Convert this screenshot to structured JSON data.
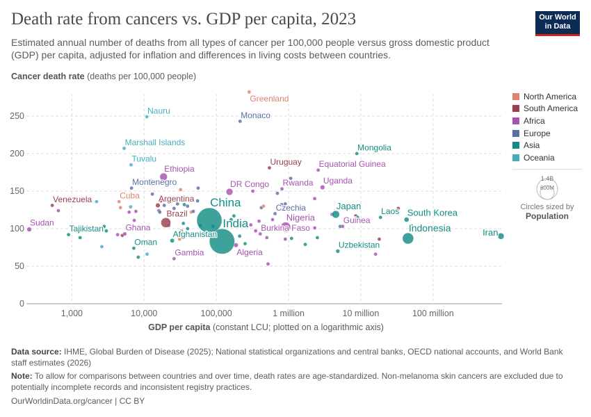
{
  "header": {
    "title": "Death rate from cancers vs. GDP per capita, 2023",
    "subtitle": "Estimated annual number of deaths from all types of cancer per 100,000 people versus gross domestic product (GDP) per capita, adjusted for inflation and differences in living costs between countries.",
    "logo_line1": "Our World",
    "logo_line2": "in Data"
  },
  "legend": {
    "regions": [
      {
        "key": "NA",
        "label": "North America",
        "color": "#e0826d"
      },
      {
        "key": "SA",
        "label": "South America",
        "color": "#9a3f4c"
      },
      {
        "key": "AF",
        "label": "Africa",
        "color": "#a653b0"
      },
      {
        "key": "EU",
        "label": "Europe",
        "color": "#5a6fa3"
      },
      {
        "key": "AS",
        "label": "Asia",
        "color": "#138c84"
      },
      {
        "key": "OC",
        "label": "Oceania",
        "color": "#45aebe"
      }
    ],
    "size_max_label": "1.4B",
    "size_mid_label": "600M",
    "size_caption": "Circles sized by",
    "size_variable": "Population"
  },
  "chart_data": {
    "type": "scatter",
    "title": "Death rate from cancers vs. GDP per capita, 2023",
    "ylabel_bold": "Cancer death rate",
    "ylabel_rest": " (deaths per 100,000 people)",
    "xlabel_bold": "GDP per capita",
    "xlabel_rest": " (constant LCU; plotted on a logarithmic axis)",
    "x_scale": "log",
    "xlim": [
      235,
      900000000
    ],
    "ylim": [
      0,
      290
    ],
    "x_ticks": [
      {
        "value": 1000,
        "label": "1,000"
      },
      {
        "value": 10000,
        "label": "10,000"
      },
      {
        "value": 100000,
        "label": "100,000"
      },
      {
        "value": 1000000,
        "label": "1 million"
      },
      {
        "value": 10000000,
        "label": "10 million"
      },
      {
        "value": 100000000,
        "label": "100 million"
      }
    ],
    "y_ticks": [
      0,
      50,
      100,
      150,
      200,
      250
    ],
    "grid": true,
    "legend_position": "right",
    "points": [
      {
        "name": "Greenland",
        "x": 285000,
        "y": 282,
        "region": "NA",
        "pop": 56000
      },
      {
        "name": "Nauru",
        "x": 10900,
        "y": 249,
        "region": "OC",
        "pop": 12000
      },
      {
        "name": "Monaco",
        "x": 213000,
        "y": 243,
        "region": "EU",
        "pop": 38000
      },
      {
        "name": "Marshall Islands",
        "x": 5300,
        "y": 207,
        "region": "OC",
        "pop": 40000
      },
      {
        "name": "Tuvalu",
        "x": 6600,
        "y": 185,
        "region": "OC",
        "pop": 11000
      },
      {
        "name": "Ethiopia",
        "x": 18600,
        "y": 169,
        "region": "AF",
        "pop": 127000000
      },
      {
        "name": "Montenegro",
        "x": 6700,
        "y": 154,
        "region": "EU",
        "pop": 620000
      },
      {
        "name": "Venezuela",
        "x": 535,
        "y": 131,
        "region": "SA",
        "pop": 28000000
      },
      {
        "name": "Cuba",
        "x": 4500,
        "y": 136,
        "region": "NA",
        "pop": 11000000
      },
      {
        "name": "Argentina",
        "x": 15500,
        "y": 131,
        "region": "SA",
        "pop": 46000000
      },
      {
        "name": "Brazil",
        "x": 20000,
        "y": 108,
        "region": "SA",
        "pop": 216000000
      },
      {
        "name": "China",
        "x": 80000,
        "y": 111,
        "region": "AS",
        "pop": 1410000000
      },
      {
        "name": "India",
        "x": 120000,
        "y": 83,
        "region": "AS",
        "pop": 1430000000
      },
      {
        "name": "Sudan",
        "x": 257,
        "y": 99,
        "region": "AF",
        "pop": 48000000
      },
      {
        "name": "Tajikistan",
        "x": 900,
        "y": 92,
        "region": "AS",
        "pop": 10000000
      },
      {
        "name": "Ghana",
        "x": 5400,
        "y": 93,
        "region": "AF",
        "pop": 34000000
      },
      {
        "name": "Oman",
        "x": 7200,
        "y": 74,
        "region": "AS",
        "pop": 4600000
      },
      {
        "name": "Afghanistan",
        "x": 24500,
        "y": 84,
        "region": "AS",
        "pop": 42000000
      },
      {
        "name": "Gambia",
        "x": 26000,
        "y": 60,
        "region": "AF",
        "pop": 2700000
      },
      {
        "name": "Algeria",
        "x": 187000,
        "y": 78,
        "region": "AF",
        "pop": 46000000
      },
      {
        "name": "Uruguay",
        "x": 543000,
        "y": 181,
        "region": "SA",
        "pop": 3400000
      },
      {
        "name": "DR Congo",
        "x": 152000,
        "y": 149,
        "region": "AF",
        "pop": 102000000
      },
      {
        "name": "Rwanda",
        "x": 810000,
        "y": 153,
        "region": "AF",
        "pop": 14000000
      },
      {
        "name": "Equatorial Guinea",
        "x": 2570000,
        "y": 178,
        "region": "AF",
        "pop": 1700000
      },
      {
        "name": "Uganda",
        "x": 2950000,
        "y": 155,
        "region": "AF",
        "pop": 48000000
      },
      {
        "name": "Czechia",
        "x": 650000,
        "y": 120,
        "region": "EU",
        "pop": 10500000
      },
      {
        "name": "Nigeria",
        "x": 910000,
        "y": 102,
        "region": "AF",
        "pop": 224000000
      },
      {
        "name": "Burkina Faso",
        "x": 405000,
        "y": 93,
        "region": "AF",
        "pop": 23000000
      },
      {
        "name": "Japan",
        "x": 4500000,
        "y": 119,
        "region": "AS",
        "pop": 124000000
      },
      {
        "name": "Guinea",
        "x": 5600000,
        "y": 103,
        "region": "AF",
        "pop": 14000000
      },
      {
        "name": "Mongolia",
        "x": 8800000,
        "y": 200,
        "region": "AS",
        "pop": 3400000
      },
      {
        "name": "Laos",
        "x": 18700000,
        "y": 115,
        "region": "AS",
        "pop": 7600000
      },
      {
        "name": "South Korea",
        "x": 43000000,
        "y": 112,
        "region": "AS",
        "pop": 51700000
      },
      {
        "name": "Indonesia",
        "x": 45000000,
        "y": 87,
        "region": "AS",
        "pop": 278000000
      },
      {
        "name": "Iran",
        "x": 870000000,
        "y": 90,
        "region": "AS",
        "pop": 89000000
      },
      {
        "name": "Uzbekistan",
        "x": 4800000,
        "y": 70,
        "region": "AS",
        "pop": 36000000
      },
      {
        "x": 2200,
        "y": 136,
        "region": "OC"
      },
      {
        "x": 650,
        "y": 124,
        "region": "AF"
      },
      {
        "x": 2800,
        "y": 103,
        "region": "AS"
      },
      {
        "x": 3000,
        "y": 97,
        "region": "AS"
      },
      {
        "x": 2600,
        "y": 76,
        "region": "OC"
      },
      {
        "x": 1300,
        "y": 88,
        "region": "AS"
      },
      {
        "x": 4300,
        "y": 92,
        "region": "AF"
      },
      {
        "x": 5000,
        "y": 91,
        "region": "SA"
      },
      {
        "x": 4700,
        "y": 128,
        "region": "NA"
      },
      {
        "x": 6200,
        "y": 122,
        "region": "AF"
      },
      {
        "x": 6500,
        "y": 129,
        "region": "OC"
      },
      {
        "x": 7700,
        "y": 123,
        "region": "AF"
      },
      {
        "x": 7300,
        "y": 111,
        "region": "AF"
      },
      {
        "x": 8300,
        "y": 62,
        "region": "AS"
      },
      {
        "x": 11000,
        "y": 66,
        "region": "OC"
      },
      {
        "x": 13000,
        "y": 146,
        "region": "EU"
      },
      {
        "x": 12500,
        "y": 164,
        "region": "OC"
      },
      {
        "x": 17000,
        "y": 137,
        "region": "SA"
      },
      {
        "x": 16000,
        "y": 124,
        "region": "AF"
      },
      {
        "x": 16500,
        "y": 122,
        "region": "EU"
      },
      {
        "x": 19000,
        "y": 131,
        "region": "EU"
      },
      {
        "x": 20500,
        "y": 138,
        "region": "AS"
      },
      {
        "x": 24000,
        "y": 137,
        "region": "NA"
      },
      {
        "x": 26000,
        "y": 127,
        "region": "EU"
      },
      {
        "x": 29000,
        "y": 133,
        "region": "EU"
      },
      {
        "x": 32000,
        "y": 152,
        "region": "NA"
      },
      {
        "x": 34000,
        "y": 140,
        "region": "EU"
      },
      {
        "x": 36000,
        "y": 132,
        "region": "AS"
      },
      {
        "x": 40000,
        "y": 130,
        "region": "EU"
      },
      {
        "x": 45000,
        "y": 122,
        "region": "NA"
      },
      {
        "x": 48000,
        "y": 123,
        "region": "EU"
      },
      {
        "x": 55000,
        "y": 137,
        "region": "EU"
      },
      {
        "x": 56000,
        "y": 154,
        "region": "EU"
      },
      {
        "x": 60000,
        "y": 104,
        "region": "AS"
      },
      {
        "x": 40000,
        "y": 100,
        "region": "AS"
      },
      {
        "x": 33000,
        "y": 97,
        "region": "NA"
      },
      {
        "x": 28000,
        "y": 93,
        "region": "EU"
      },
      {
        "x": 31000,
        "y": 86,
        "region": "NA"
      },
      {
        "x": 22000,
        "y": 104,
        "region": "AF"
      },
      {
        "x": 35000,
        "y": 107,
        "region": "AS"
      },
      {
        "x": 90000,
        "y": 103,
        "region": "AS"
      },
      {
        "x": 160000,
        "y": 112,
        "region": "AS"
      },
      {
        "x": 175000,
        "y": 117,
        "region": "AS"
      },
      {
        "x": 210000,
        "y": 90,
        "region": "AS"
      },
      {
        "x": 250000,
        "y": 80,
        "region": "AS"
      },
      {
        "x": 270000,
        "y": 65,
        "region": "AS"
      },
      {
        "x": 300000,
        "y": 105,
        "region": "AF"
      },
      {
        "x": 320000,
        "y": 150,
        "region": "AF"
      },
      {
        "x": 350000,
        "y": 97,
        "region": "AF"
      },
      {
        "x": 390000,
        "y": 110,
        "region": "AF"
      },
      {
        "x": 420000,
        "y": 128,
        "region": "EU"
      },
      {
        "x": 450000,
        "y": 130,
        "region": "NA"
      },
      {
        "x": 480000,
        "y": 100,
        "region": "AF"
      },
      {
        "x": 500000,
        "y": 88,
        "region": "AF"
      },
      {
        "x": 520000,
        "y": 53,
        "region": "AF"
      },
      {
        "x": 600000,
        "y": 112,
        "region": "AF"
      },
      {
        "x": 700000,
        "y": 147,
        "region": "EU"
      },
      {
        "x": 800000,
        "y": 132,
        "region": "EU"
      },
      {
        "x": 900000,
        "y": 86,
        "region": "AF"
      },
      {
        "x": 1100000,
        "y": 87,
        "region": "AS"
      },
      {
        "x": 1700000,
        "y": 79,
        "region": "AS"
      },
      {
        "x": 2300000,
        "y": 101,
        "region": "AF"
      },
      {
        "x": 2500000,
        "y": 88,
        "region": "AS"
      },
      {
        "x": 4000000,
        "y": 119,
        "region": "AF"
      },
      {
        "x": 5200000,
        "y": 103,
        "region": "AS"
      },
      {
        "x": 8500000,
        "y": 117,
        "region": "SA"
      },
      {
        "x": 9000000,
        "y": 115,
        "region": "AS"
      },
      {
        "x": 16000000,
        "y": 66,
        "region": "AF"
      },
      {
        "x": 33000000,
        "y": 127,
        "region": "SA"
      },
      {
        "x": 18000000,
        "y": 86,
        "region": "SA"
      },
      {
        "x": 50000000,
        "y": 104,
        "region": "AS"
      },
      {
        "x": 2300000,
        "y": 140,
        "region": "AF"
      },
      {
        "x": 900000,
        "y": 133,
        "region": "EU"
      },
      {
        "x": 1070000,
        "y": 167,
        "region": "EU"
      }
    ]
  },
  "footer": {
    "source_label": "Data source:",
    "source_text": " IHME, Global Burden of Disease (2025); National statistical organizations and central banks, OECD national accounts, and World Bank staff estimates (2026)",
    "note_label": "Note:",
    "note_text": " To allow for comparisons between countries and over time, death rates are age-standardized. Non-melanoma skin cancers are excluded due to potentially incomplete records and inconsistent registry practices.",
    "url": "OurWorldinData.org/cancer | CC BY"
  }
}
